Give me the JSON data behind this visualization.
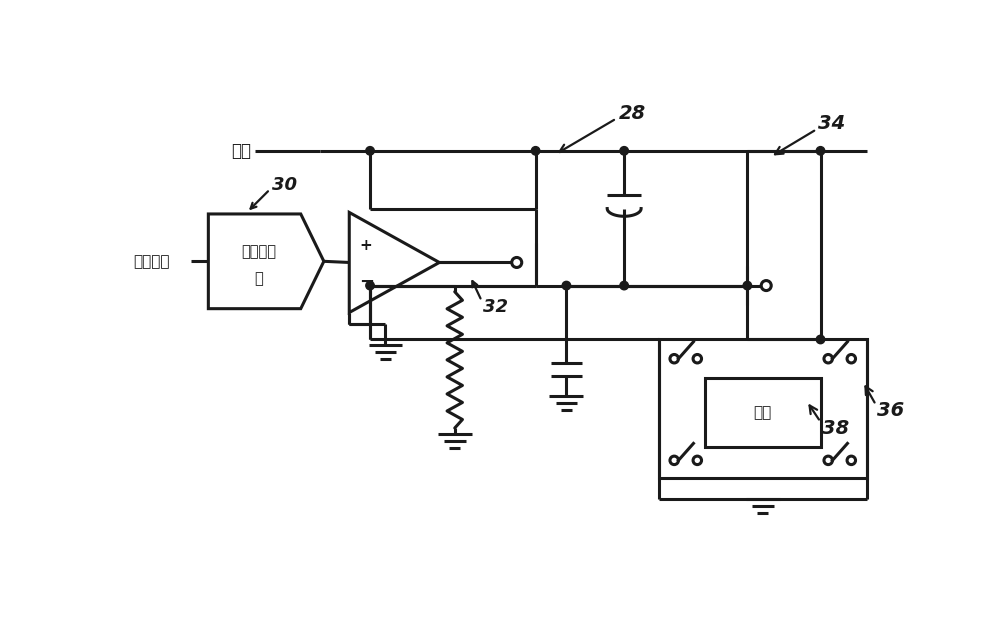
{
  "bg_color": "#ffffff",
  "line_color": "#1a1a1a",
  "line_width": 2.2,
  "labels": {
    "voltage": "电压",
    "power_waveform": "功率波形",
    "dac_line1": "数模转换",
    "dac_line2": "器",
    "coil": "音圈",
    "ref_28": "28",
    "ref_30": "30",
    "ref_32": "32",
    "ref_34": "34",
    "ref_36": "36",
    "ref_38": "38"
  }
}
